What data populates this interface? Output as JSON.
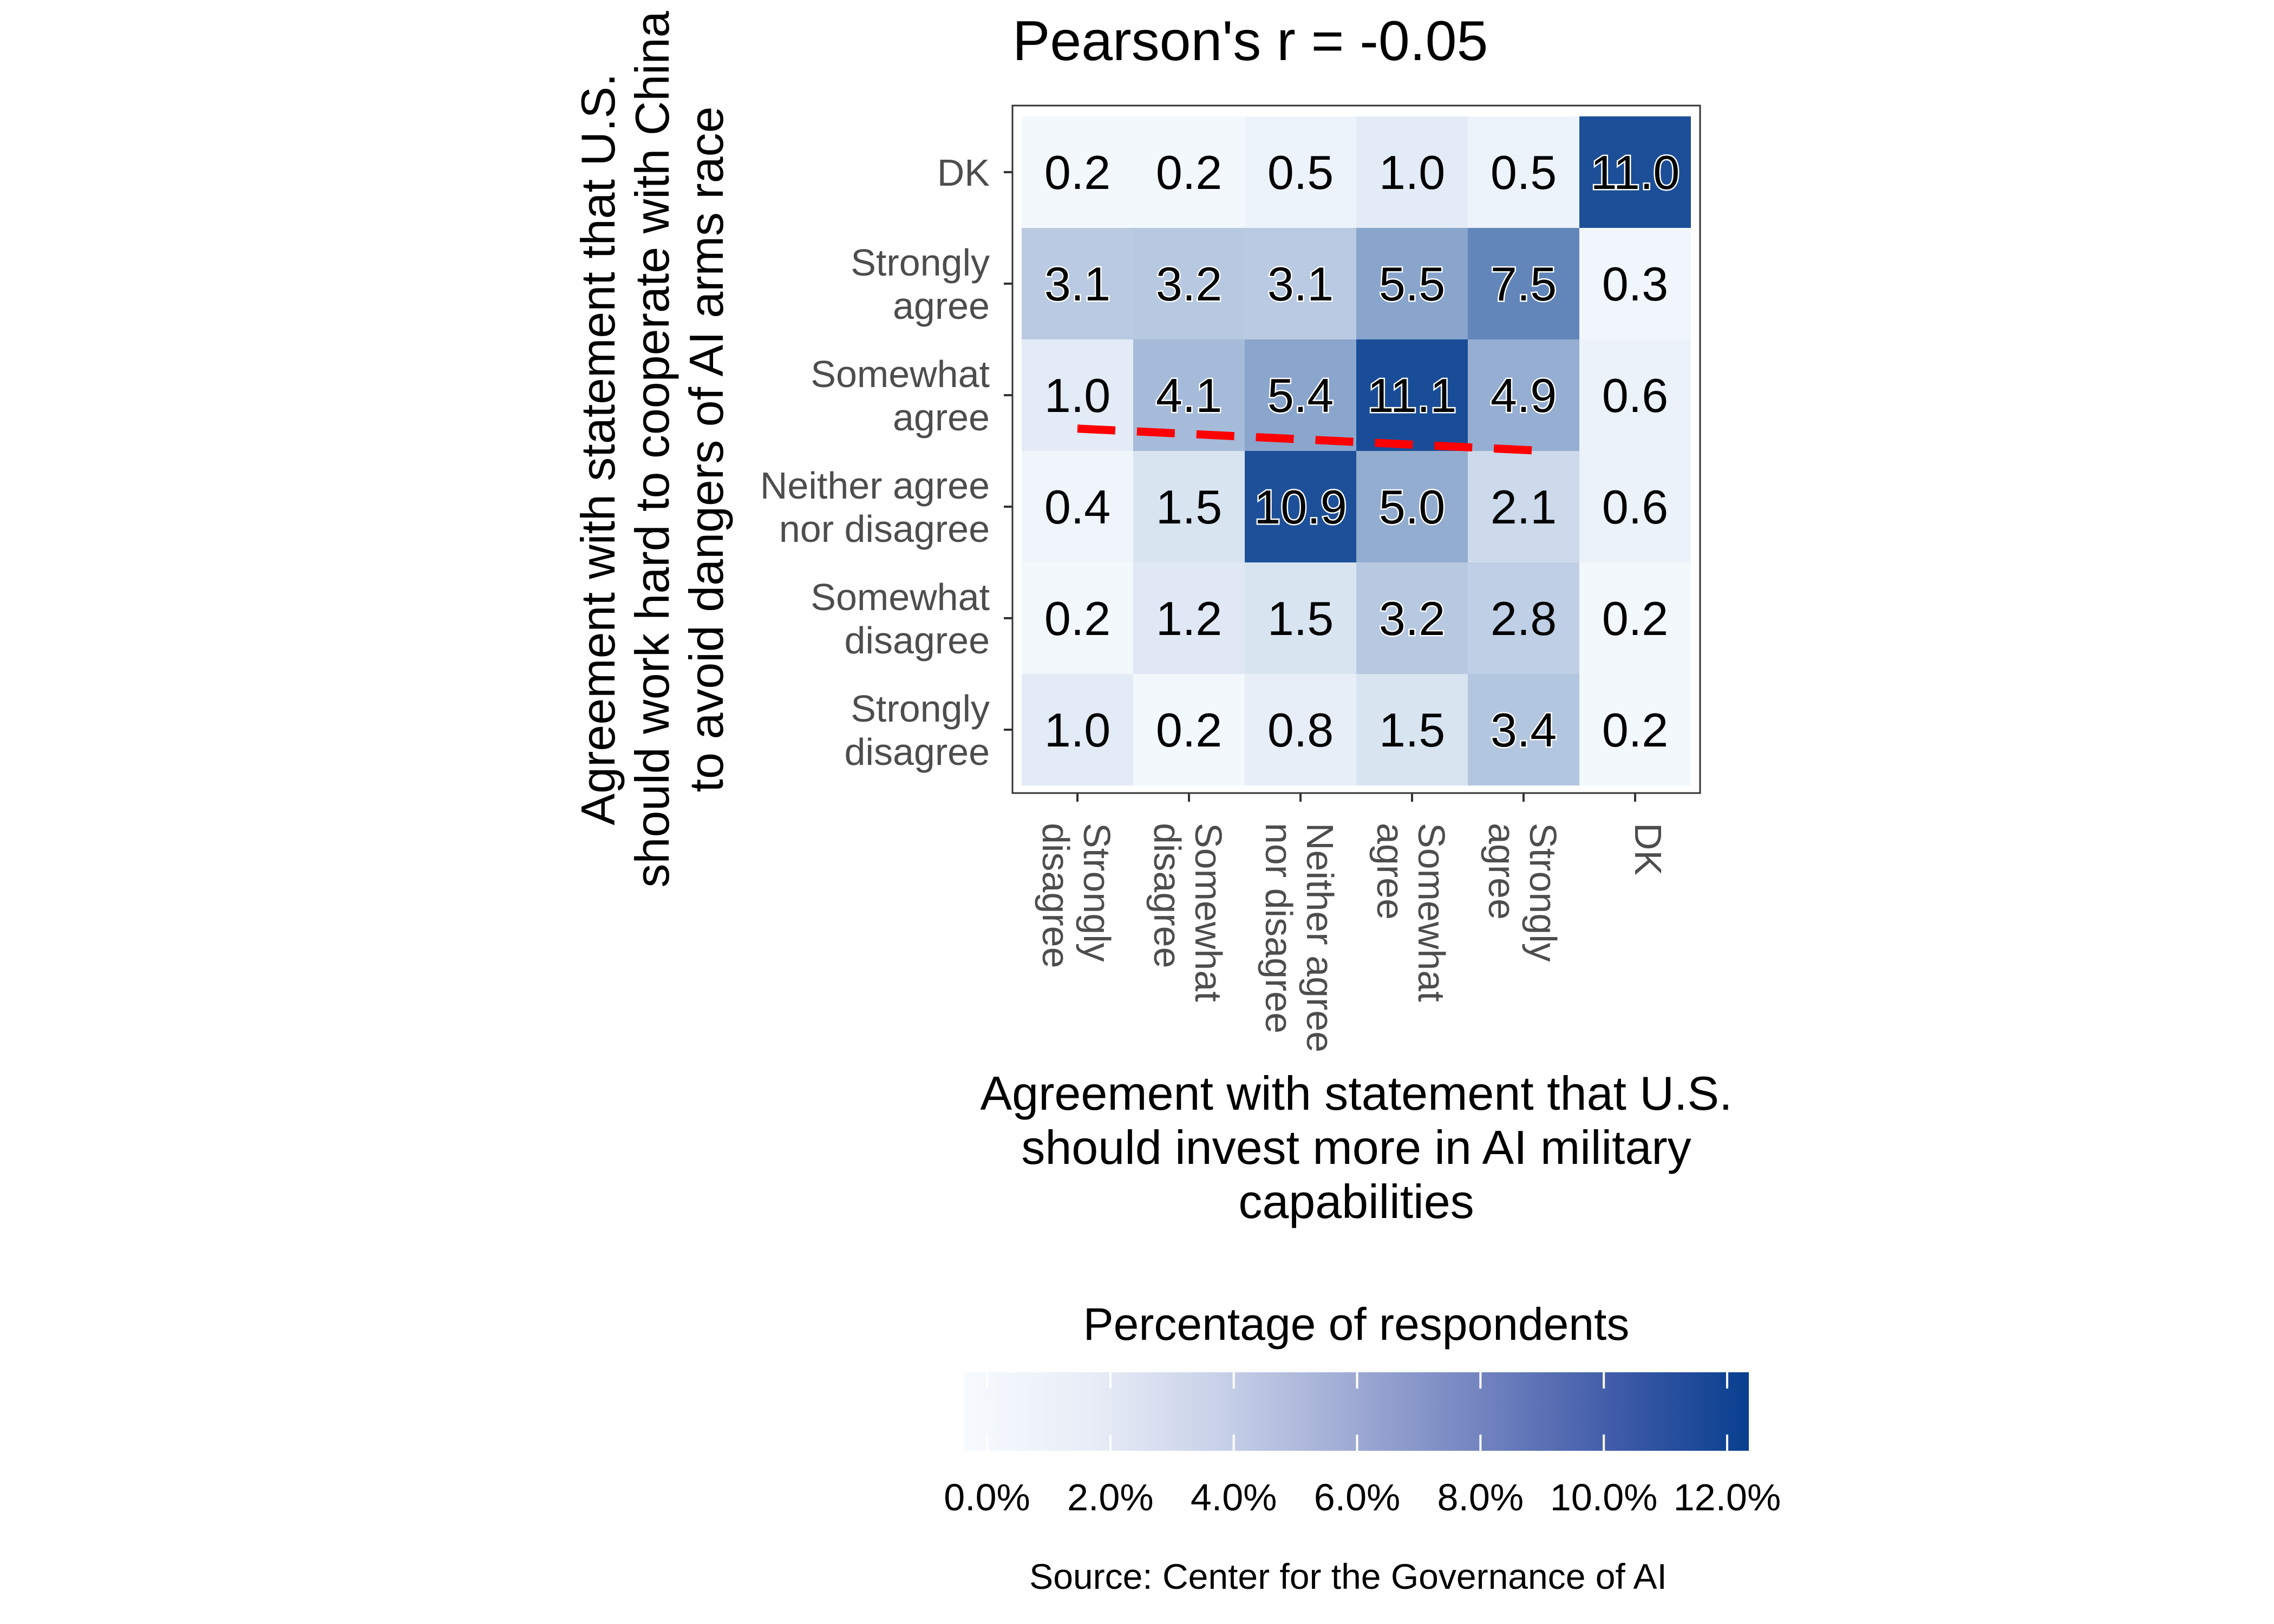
{
  "chart_data": {
    "type": "heatmap",
    "title": "Pearson's r = -0.05",
    "xlabel": "Agreement with statement that U.S. should invest more in AI military capabilities",
    "xlabel_lines": [
      "Agreement with statement that U.S.",
      "should invest more in AI military",
      "capabilities"
    ],
    "ylabel": "Agreement with statement that U.S. should work hard to cooperate with China to avoid dangers of AI arms race",
    "ylabel_lines": [
      "Agreement with statement that U.S.",
      "should work hard to cooperate with China",
      "to avoid dangers of AI arms race"
    ],
    "x_categories": [
      "Strongly disagree",
      "Somewhat disagree",
      "Neither agree nor disagree",
      "Somewhat agree",
      "Strongly agree",
      "DK"
    ],
    "x_tick_lines": [
      [
        "Strongly",
        "disagree"
      ],
      [
        "Somewhat",
        "disagree"
      ],
      [
        "Neither agree",
        "nor disagree"
      ],
      [
        "Somewhat",
        "agree"
      ],
      [
        "Strongly",
        "agree"
      ],
      [
        "DK"
      ]
    ],
    "y_categories": [
      "DK",
      "Strongly agree",
      "Somewhat agree",
      "Neither agree nor disagree",
      "Somewhat disagree",
      "Strongly disagree"
    ],
    "y_tick_lines": [
      [
        "DK"
      ],
      [
        "Strongly",
        "agree"
      ],
      [
        "Somewhat",
        "agree"
      ],
      [
        "Neither agree",
        "nor disagree"
      ],
      [
        "Somewhat",
        "disagree"
      ],
      [
        "Strongly",
        "disagree"
      ]
    ],
    "values": [
      [
        0.2,
        0.2,
        0.5,
        1.0,
        0.5,
        11.0
      ],
      [
        3.1,
        3.2,
        3.1,
        5.5,
        7.5,
        0.3
      ],
      [
        1.0,
        4.1,
        5.4,
        11.1,
        4.9,
        0.6
      ],
      [
        0.4,
        1.5,
        10.9,
        5.0,
        2.1,
        0.6
      ],
      [
        0.2,
        1.2,
        1.5,
        3.2,
        2.8,
        0.2
      ],
      [
        1.0,
        0.2,
        0.8,
        1.5,
        3.4,
        0.2
      ]
    ],
    "value_range": [
      0,
      12
    ],
    "trend_line": {
      "from_x": "Strongly disagree",
      "to_x": "Strongly agree",
      "start_y_row_offset": 2.3,
      "end_y_row_offset": 2.5,
      "color": "#ff0000",
      "style": "dashed"
    },
    "legend": {
      "title": "Percentage of respondents",
      "ticks": [
        "0.0%",
        "2.0%",
        "4.0%",
        "6.0%",
        "8.0%",
        "10.0%",
        "12.0%"
      ],
      "tick_values": [
        0,
        2,
        4,
        6,
        8,
        10,
        12
      ],
      "placement": "bottom"
    },
    "colors": {
      "low": "#f7fbff",
      "high": "#083f8f",
      "trend": "#ff0000"
    },
    "source": "Source: Center for the Governance of AI"
  }
}
